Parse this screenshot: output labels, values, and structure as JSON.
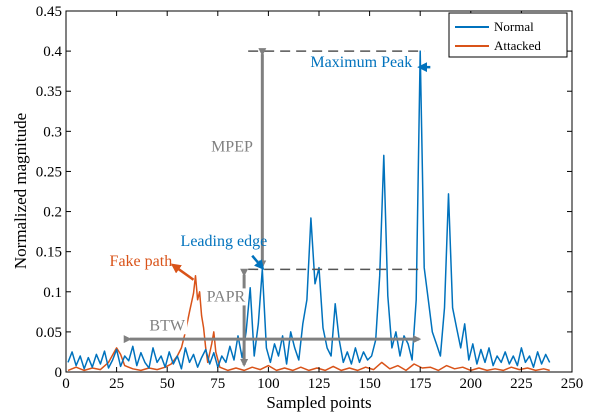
{
  "chart_data": {
    "type": "line",
    "xlabel": "Sampled points",
    "ylabel": "Normalized magnitude",
    "xlim": [
      0,
      250
    ],
    "ylim": [
      0,
      0.45
    ],
    "xticks": [
      0,
      25,
      50,
      75,
      100,
      125,
      150,
      175,
      200,
      225,
      250
    ],
    "yticks": [
      0,
      0.05,
      0.1,
      0.15,
      0.2,
      0.25,
      0.3,
      0.35,
      0.4,
      0.45
    ],
    "ytick_labels": [
      "0",
      "0.05",
      "0.1",
      "0.15",
      "0.2",
      "0.25",
      "0.3",
      "0.35",
      "0.4",
      "0.45"
    ],
    "grid": false,
    "legend_position": "top-right",
    "series": [
      {
        "name": "Normal",
        "color": "#0072BD",
        "points": [
          [
            1,
            0.012
          ],
          [
            3,
            0.025
          ],
          [
            5,
            0.008
          ],
          [
            7,
            0.02
          ],
          [
            9,
            0.004
          ],
          [
            11,
            0.018
          ],
          [
            13,
            0.006
          ],
          [
            15,
            0.022
          ],
          [
            17,
            0.01
          ],
          [
            19,
            0.026
          ],
          [
            21,
            0.005
          ],
          [
            23,
            0.015
          ],
          [
            25,
            0.028
          ],
          [
            27,
            0.007
          ],
          [
            29,
            0.02
          ],
          [
            31,
            0.014
          ],
          [
            33,
            0.032
          ],
          [
            35,
            0.008
          ],
          [
            37,
            0.024
          ],
          [
            39,
            0.012
          ],
          [
            41,
            0.005
          ],
          [
            43,
            0.03
          ],
          [
            45,
            0.012
          ],
          [
            47,
            0.02
          ],
          [
            49,
            0.006
          ],
          [
            51,
            0.025
          ],
          [
            53,
            0.01
          ],
          [
            55,
            0.02
          ],
          [
            57,
            0.004
          ],
          [
            59,
            0.03
          ],
          [
            61,
            0.012
          ],
          [
            63,
            0.022
          ],
          [
            65,
            0.006
          ],
          [
            67,
            0.018
          ],
          [
            69,
            0.028
          ],
          [
            71,
            0.01
          ],
          [
            73,
            0.024
          ],
          [
            75,
            0.006
          ],
          [
            77,
            0.02
          ],
          [
            79,
            0.012
          ],
          [
            81,
            0.032
          ],
          [
            83,
            0.015
          ],
          [
            85,
            0.045
          ],
          [
            87,
            0.018
          ],
          [
            89,
            0.05
          ],
          [
            91,
            0.105
          ],
          [
            93,
            0.02
          ],
          [
            95,
            0.06
          ],
          [
            97,
            0.128
          ],
          [
            99,
            0.03
          ],
          [
            101,
            0.012
          ],
          [
            103,
            0.035
          ],
          [
            105,
            0.02
          ],
          [
            107,
            0.045
          ],
          [
            109,
            0.01
          ],
          [
            111,
            0.05
          ],
          [
            113,
            0.03
          ],
          [
            115,
            0.015
          ],
          [
            117,
            0.06
          ],
          [
            119,
            0.09
          ],
          [
            121,
            0.192
          ],
          [
            123,
            0.11
          ],
          [
            125,
            0.13
          ],
          [
            127,
            0.055
          ],
          [
            129,
            0.03
          ],
          [
            131,
            0.02
          ],
          [
            133,
            0.085
          ],
          [
            135,
            0.04
          ],
          [
            137,
            0.012
          ],
          [
            139,
            0.025
          ],
          [
            141,
            0.01
          ],
          [
            143,
            0.03
          ],
          [
            145,
            0.012
          ],
          [
            147,
            0.025
          ],
          [
            149,
            0.015
          ],
          [
            151,
            0.02
          ],
          [
            153,
            0.04
          ],
          [
            155,
            0.12
          ],
          [
            157,
            0.27
          ],
          [
            159,
            0.095
          ],
          [
            161,
            0.03
          ],
          [
            163,
            0.05
          ],
          [
            165,
            0.02
          ],
          [
            167,
            0.045
          ],
          [
            169,
            0.035
          ],
          [
            171,
            0.015
          ],
          [
            173,
            0.09
          ],
          [
            175,
            0.4
          ],
          [
            177,
            0.13
          ],
          [
            179,
            0.09
          ],
          [
            181,
            0.05
          ],
          [
            183,
            0.035
          ],
          [
            185,
            0.02
          ],
          [
            187,
            0.08
          ],
          [
            189,
            0.222
          ],
          [
            191,
            0.08
          ],
          [
            193,
            0.055
          ],
          [
            195,
            0.03
          ],
          [
            197,
            0.06
          ],
          [
            199,
            0.015
          ],
          [
            201,
            0.035
          ],
          [
            203,
            0.01
          ],
          [
            205,
            0.028
          ],
          [
            207,
            0.012
          ],
          [
            209,
            0.03
          ],
          [
            211,
            0.008
          ],
          [
            213,
            0.02
          ],
          [
            215,
            0.012
          ],
          [
            217,
            0.025
          ],
          [
            219,
            0.01
          ],
          [
            221,
            0.02
          ],
          [
            223,
            0.008
          ],
          [
            225,
            0.03
          ],
          [
            227,
            0.012
          ],
          [
            229,
            0.02
          ],
          [
            231,
            0.006
          ],
          [
            233,
            0.025
          ],
          [
            235,
            0.01
          ],
          [
            237,
            0.022
          ],
          [
            239,
            0.012
          ]
        ]
      },
      {
        "name": "Attacked",
        "color": "#D95319",
        "points": [
          [
            1,
            0.002
          ],
          [
            5,
            0.006
          ],
          [
            9,
            0.002
          ],
          [
            13,
            0.005
          ],
          [
            17,
            0.003
          ],
          [
            21,
            0.012
          ],
          [
            25,
            0.03
          ],
          [
            27,
            0.022
          ],
          [
            29,
            0.008
          ],
          [
            33,
            0.004
          ],
          [
            37,
            0.002
          ],
          [
            41,
            0.005
          ],
          [
            45,
            0.003
          ],
          [
            49,
            0.006
          ],
          [
            52,
            0.01
          ],
          [
            55,
            0.02
          ],
          [
            57,
            0.03
          ],
          [
            59,
            0.05
          ],
          [
            61,
            0.075
          ],
          [
            63,
            0.098
          ],
          [
            64,
            0.12
          ],
          [
            65,
            0.09
          ],
          [
            66,
            0.1
          ],
          [
            67,
            0.07
          ],
          [
            68,
            0.055
          ],
          [
            69,
            0.03
          ],
          [
            70,
            0.012
          ],
          [
            72,
            0.035
          ],
          [
            73,
            0.05
          ],
          [
            74,
            0.025
          ],
          [
            76,
            0.006
          ],
          [
            80,
            0.002
          ],
          [
            84,
            0.005
          ],
          [
            88,
            0.002
          ],
          [
            92,
            0.006
          ],
          [
            96,
            0.003
          ],
          [
            100,
            0.008
          ],
          [
            104,
            0.002
          ],
          [
            108,
            0.005
          ],
          [
            112,
            0.002
          ],
          [
            116,
            0.006
          ],
          [
            120,
            0.002
          ],
          [
            124,
            0.005
          ],
          [
            128,
            0.002
          ],
          [
            132,
            0.007
          ],
          [
            136,
            0.002
          ],
          [
            140,
            0.005
          ],
          [
            144,
            0.002
          ],
          [
            148,
            0.006
          ],
          [
            152,
            0.003
          ],
          [
            156,
            0.012
          ],
          [
            160,
            0.004
          ],
          [
            164,
            0.008
          ],
          [
            168,
            0.002
          ],
          [
            172,
            0.01
          ],
          [
            176,
            0.005
          ],
          [
            180,
            0.006
          ],
          [
            184,
            0.002
          ],
          [
            188,
            0.008
          ],
          [
            192,
            0.004
          ],
          [
            196,
            0.006
          ],
          [
            200,
            0.002
          ],
          [
            204,
            0.005
          ],
          [
            208,
            0.002
          ],
          [
            212,
            0.004
          ],
          [
            216,
            0.002
          ],
          [
            220,
            0.006
          ],
          [
            224,
            0.003
          ],
          [
            228,
            0.005
          ],
          [
            232,
            0.002
          ],
          [
            236,
            0.004
          ],
          [
            239,
            0.002
          ]
        ]
      }
    ],
    "annotations": [
      {
        "text": "Maximum Peak",
        "color": "#0072BD",
        "x": 160,
        "y": 0.38
      },
      {
        "text": "MPEP",
        "color": "#808080",
        "x": 82,
        "y": 0.275
      },
      {
        "text": "Leading edge",
        "color": "#0072BD",
        "x": 78,
        "y": 0.157
      },
      {
        "text": "Fake path",
        "color": "#D95319",
        "x": 37,
        "y": 0.132
      },
      {
        "text": "PAPR",
        "color": "#808080",
        "x": 79,
        "y": 0.088
      },
      {
        "text": "BTW",
        "color": "#808080",
        "x": 50,
        "y": 0.052
      }
    ]
  }
}
